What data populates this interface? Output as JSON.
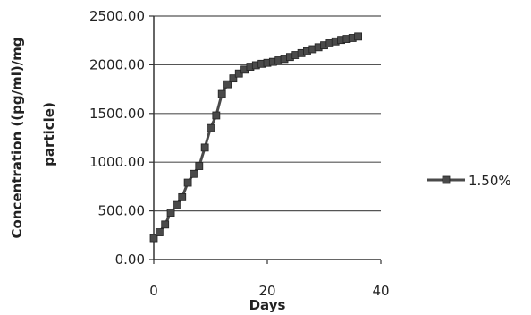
{
  "chart_data": {
    "type": "line",
    "title": "",
    "xlabel": "Days",
    "ylabel_lines": [
      "Concentration ((pg/ml)/mg",
      "particle)"
    ],
    "xlim": [
      0,
      40
    ],
    "ylim": [
      0,
      2500
    ],
    "x_ticks": [
      0,
      20,
      40
    ],
    "x_tick_labels": [
      "0",
      "20",
      "40"
    ],
    "y_ticks": [
      0,
      500,
      1000,
      1500,
      2000,
      2500
    ],
    "y_tick_labels": [
      "0.00",
      "500.00",
      "1000.00",
      "1500.00",
      "2000.00",
      "2500.00"
    ],
    "grid": "horizontal",
    "legend_position": "right",
    "series": [
      {
        "name": "1.50%",
        "color": "#4a4a4a",
        "marker": "square",
        "x": [
          0,
          1,
          2,
          3,
          4,
          5,
          6,
          7,
          8,
          9,
          10,
          11,
          12,
          13,
          14,
          15,
          16,
          17,
          18,
          19,
          20,
          21,
          22,
          23,
          24,
          25,
          26,
          27,
          28,
          29,
          30,
          31,
          32,
          33,
          34,
          35,
          36
        ],
        "y": [
          220,
          280,
          360,
          480,
          560,
          640,
          790,
          880,
          960,
          1150,
          1350,
          1480,
          1700,
          1800,
          1860,
          1910,
          1950,
          1980,
          1995,
          2010,
          2020,
          2030,
          2045,
          2060,
          2080,
          2100,
          2120,
          2140,
          2160,
          2180,
          2200,
          2220,
          2240,
          2255,
          2265,
          2275,
          2290
        ]
      }
    ]
  }
}
